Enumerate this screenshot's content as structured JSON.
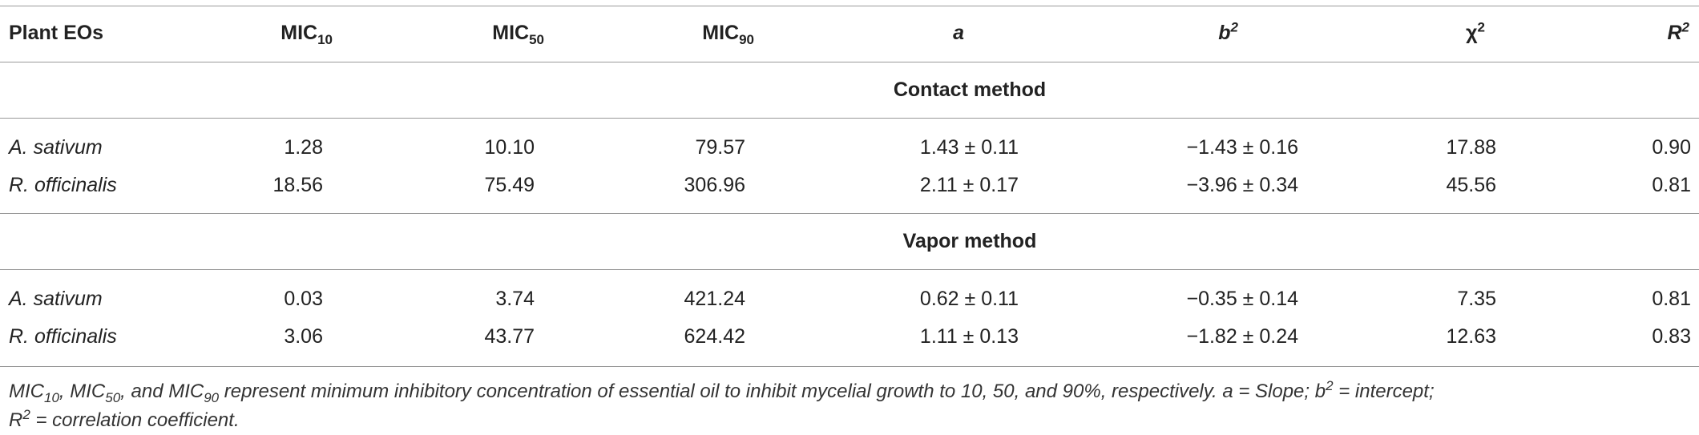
{
  "table": {
    "header": [
      [
        {
          "text": "Plant EOs"
        }
      ],
      [
        {
          "text": "MIC"
        },
        {
          "sub": "10"
        }
      ],
      [
        {
          "text": "MIC"
        },
        {
          "sub": "50"
        }
      ],
      [
        {
          "text": "MIC"
        },
        {
          "sub": "90"
        }
      ],
      [
        {
          "text": "a"
        }
      ],
      [
        {
          "text": "b"
        },
        {
          "sup": "2"
        }
      ],
      [
        {
          "text": "χ"
        },
        {
          "sup": "2"
        }
      ],
      [
        {
          "text": "R"
        },
        {
          "sup": "2"
        }
      ]
    ],
    "sections": [
      {
        "title": "Contact method",
        "rows": [
          [
            "A. sativum",
            "1.28",
            "10.10",
            "79.57",
            "1.43 ± 0.11",
            "−1.43 ± 0.16",
            "17.88",
            "0.90"
          ],
          [
            "R. officinalis",
            "18.56",
            "75.49",
            "306.96",
            "2.11 ± 0.17",
            "−3.96 ± 0.34",
            "45.56",
            "0.81"
          ]
        ]
      },
      {
        "title": "Vapor method",
        "rows": [
          [
            "A. sativum",
            "0.03",
            "3.74",
            "421.24",
            "0.62 ± 0.11",
            "−0.35 ± 0.14",
            "7.35",
            "0.81"
          ],
          [
            "R. officinalis",
            "3.06",
            "43.77",
            "624.42",
            "1.11 ± 0.13",
            "−1.82 ± 0.24",
            "12.63",
            "0.83"
          ]
        ]
      }
    ],
    "footnote": [
      [
        {
          "text": "MIC"
        },
        {
          "sub": "10"
        },
        {
          "text": ", MIC"
        },
        {
          "sub": "50"
        },
        {
          "text": ", and MIC"
        },
        {
          "sub": "90"
        },
        {
          "text": " represent minimum inhibitory concentration of essential oil to inhibit mycelial growth to 10, 50, and 90%, respectively. a = Slope; b"
        },
        {
          "sup": "2"
        },
        {
          "text": " = intercept;"
        }
      ],
      [
        {
          "text": "R"
        },
        {
          "sup": "2"
        },
        {
          "text": " = correlation coefficient."
        }
      ]
    ]
  }
}
